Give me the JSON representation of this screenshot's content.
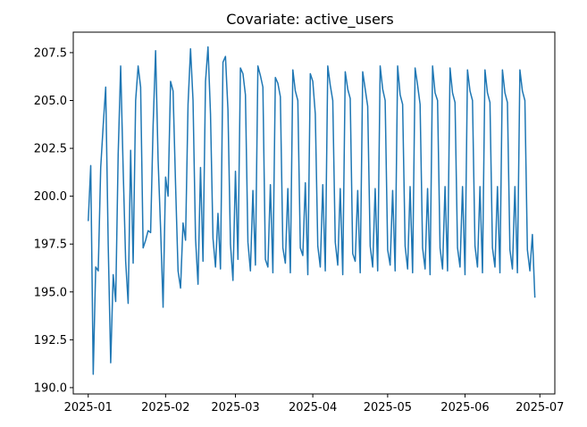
{
  "chart_data": {
    "type": "line",
    "title": "Covariate: active_users",
    "xlabel": "",
    "ylabel": "",
    "line_color": "#1f77b4",
    "grid": false,
    "xlim": [
      "2024-12-26",
      "2025-07-07"
    ],
    "ylim": [
      189.67,
      208.57
    ],
    "x_ticks": [
      "2025-01",
      "2025-02",
      "2025-03",
      "2025-04",
      "2025-05",
      "2025-06",
      "2025-07"
    ],
    "y_ticks": [
      "190.0",
      "192.5",
      "195.0",
      "197.5",
      "200.0",
      "202.5",
      "205.0",
      "207.5"
    ],
    "x": [
      "2025-01-01",
      "2025-01-02",
      "2025-01-03",
      "2025-01-04",
      "2025-01-05",
      "2025-01-06",
      "2025-01-07",
      "2025-01-08",
      "2025-01-09",
      "2025-01-10",
      "2025-01-11",
      "2025-01-12",
      "2025-01-13",
      "2025-01-14",
      "2025-01-15",
      "2025-01-16",
      "2025-01-17",
      "2025-01-18",
      "2025-01-19",
      "2025-01-20",
      "2025-01-21",
      "2025-01-22",
      "2025-01-23",
      "2025-01-24",
      "2025-01-25",
      "2025-01-26",
      "2025-01-27",
      "2025-01-28",
      "2025-01-29",
      "2025-01-30",
      "2025-01-31",
      "2025-02-01",
      "2025-02-02",
      "2025-02-03",
      "2025-02-04",
      "2025-02-05",
      "2025-02-06",
      "2025-02-07",
      "2025-02-08",
      "2025-02-09",
      "2025-02-10",
      "2025-02-11",
      "2025-02-12",
      "2025-02-13",
      "2025-02-14",
      "2025-02-15",
      "2025-02-16",
      "2025-02-17",
      "2025-02-18",
      "2025-02-19",
      "2025-02-20",
      "2025-02-21",
      "2025-02-22",
      "2025-02-23",
      "2025-02-24",
      "2025-02-25",
      "2025-02-26",
      "2025-02-27",
      "2025-02-28",
      "2025-03-01",
      "2025-03-02",
      "2025-03-03",
      "2025-03-04",
      "2025-03-05",
      "2025-03-06",
      "2025-03-07",
      "2025-03-08",
      "2025-03-09",
      "2025-03-10",
      "2025-03-11",
      "2025-03-12",
      "2025-03-13",
      "2025-03-14",
      "2025-03-15",
      "2025-03-16",
      "2025-03-17",
      "2025-03-18",
      "2025-03-19",
      "2025-03-20",
      "2025-03-21",
      "2025-03-22",
      "2025-03-23",
      "2025-03-24",
      "2025-03-25",
      "2025-03-26",
      "2025-03-27",
      "2025-03-28",
      "2025-03-29",
      "2025-03-30",
      "2025-03-31",
      "2025-04-01",
      "2025-04-02",
      "2025-04-03",
      "2025-04-04",
      "2025-04-05",
      "2025-04-06",
      "2025-04-07",
      "2025-04-08",
      "2025-04-09",
      "2025-04-10",
      "2025-04-11",
      "2025-04-12",
      "2025-04-13",
      "2025-04-14",
      "2025-04-15",
      "2025-04-16",
      "2025-04-17",
      "2025-04-18",
      "2025-04-19",
      "2025-04-20",
      "2025-04-21",
      "2025-04-22",
      "2025-04-23",
      "2025-04-24",
      "2025-04-25",
      "2025-04-26",
      "2025-04-27",
      "2025-04-28",
      "2025-04-29",
      "2025-04-30",
      "2025-05-01",
      "2025-05-02",
      "2025-05-03",
      "2025-05-04",
      "2025-05-05",
      "2025-05-06",
      "2025-05-07",
      "2025-05-08",
      "2025-05-09",
      "2025-05-10",
      "2025-05-11",
      "2025-05-12",
      "2025-05-13",
      "2025-05-14",
      "2025-05-15",
      "2025-05-16",
      "2025-05-17",
      "2025-05-18",
      "2025-05-19",
      "2025-05-20",
      "2025-05-21",
      "2025-05-22",
      "2025-05-23",
      "2025-05-24",
      "2025-05-25",
      "2025-05-26",
      "2025-05-27",
      "2025-05-28",
      "2025-05-29",
      "2025-05-30",
      "2025-05-31",
      "2025-06-01",
      "2025-06-02",
      "2025-06-03",
      "2025-06-04",
      "2025-06-05",
      "2025-06-06",
      "2025-06-07",
      "2025-06-08",
      "2025-06-09",
      "2025-06-10",
      "2025-06-11",
      "2025-06-12",
      "2025-06-13",
      "2025-06-14",
      "2025-06-15",
      "2025-06-16",
      "2025-06-17",
      "2025-06-18",
      "2025-06-19",
      "2025-06-20",
      "2025-06-21",
      "2025-06-22",
      "2025-06-23",
      "2025-06-24",
      "2025-06-25",
      "2025-06-26",
      "2025-06-27",
      "2025-06-28",
      "2025-06-29"
    ],
    "values": [
      198.7,
      201.6,
      190.7,
      196.3,
      196.1,
      201.5,
      203.7,
      205.7,
      197.5,
      191.3,
      195.9,
      194.5,
      202.2,
      206.8,
      201.4,
      196.6,
      194.4,
      202.4,
      196.5,
      205.0,
      206.8,
      205.7,
      197.3,
      197.7,
      198.2,
      198.1,
      203.7,
      207.6,
      201.9,
      198.3,
      194.2,
      201.0,
      200.0,
      206.0,
      205.5,
      200.6,
      196.1,
      195.2,
      198.6,
      197.7,
      204.8,
      207.7,
      205.0,
      197.8,
      195.4,
      201.5,
      196.6,
      206.0,
      207.8,
      204.3,
      197.8,
      196.3,
      199.1,
      196.2,
      207.0,
      207.3,
      204.5,
      197.5,
      195.6,
      201.3,
      196.7,
      206.7,
      206.4,
      205.3,
      197.6,
      196.1,
      200.3,
      196.4,
      206.8,
      206.3,
      205.7,
      196.7,
      196.3,
      200.6,
      196.0,
      206.2,
      205.9,
      205.2,
      197.3,
      196.5,
      200.4,
      196.0,
      206.6,
      205.5,
      205.0,
      197.3,
      196.9,
      200.7,
      195.9,
      206.4,
      206.0,
      204.3,
      197.4,
      196.3,
      200.6,
      196.1,
      206.8,
      205.8,
      205.0,
      197.6,
      196.4,
      200.4,
      195.9,
      206.5,
      205.6,
      205.1,
      197.0,
      196.6,
      200.3,
      196.0,
      206.5,
      205.6,
      204.7,
      197.4,
      196.3,
      200.4,
      196.1,
      206.8,
      205.6,
      205.0,
      197.2,
      196.4,
      200.3,
      196.1,
      206.8,
      205.3,
      204.8,
      197.4,
      196.2,
      200.5,
      196.0,
      206.7,
      205.8,
      204.8,
      197.3,
      196.2,
      200.4,
      195.9,
      206.8,
      205.4,
      205.0,
      197.3,
      196.2,
      200.5,
      196.1,
      206.7,
      205.4,
      204.9,
      197.3,
      196.3,
      200.5,
      195.9,
      206.6,
      205.5,
      205.0,
      197.4,
      196.3,
      200.5,
      196.0,
      206.6,
      205.4,
      204.9,
      197.3,
      196.3,
      200.5,
      196.0,
      206.6,
      205.4,
      204.9,
      197.2,
      196.2,
      200.5,
      196.0,
      206.6,
      205.5,
      205.0,
      197.2,
      196.1,
      198.0,
      194.7
    ]
  }
}
